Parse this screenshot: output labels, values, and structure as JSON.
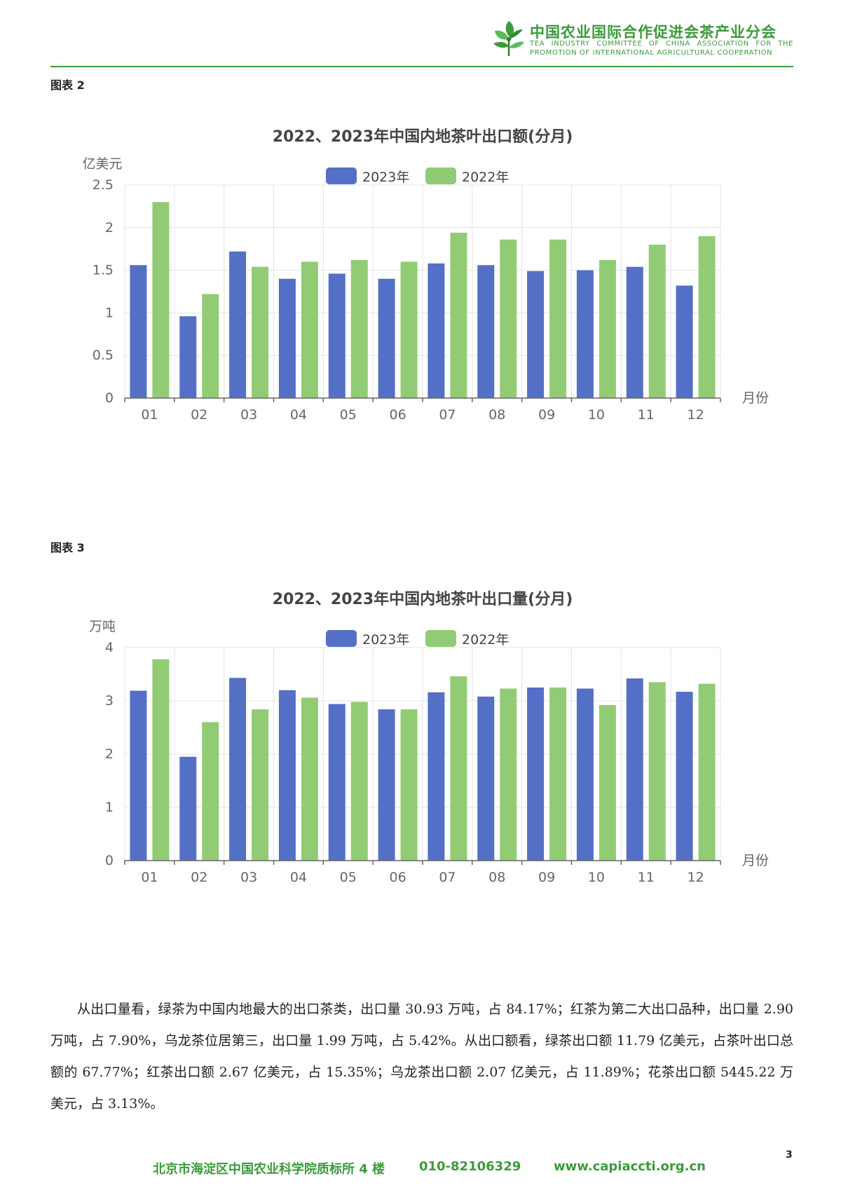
{
  "header": {
    "org_name_cn": "中国农业国际合作促进会茶产业分会",
    "org_name_en": "TEA INDUSTRY COMMITTEE OF CHINA ASSOCIATION FOR THE PROMOTION OF INTERNATIONAL AGRICULTURAL COOPERATION",
    "logo_icon": "tea-leaf-logo-icon",
    "accent_color": "#3a9b3a"
  },
  "figures": [
    {
      "label": "图表 2"
    },
    {
      "label": "图表 3"
    }
  ],
  "chart_data": [
    {
      "type": "bar",
      "title": "2022、2023年中国内地茶叶出口额(分月)",
      "ylabel": "亿美元",
      "xlabel": "月份",
      "categories": [
        "01",
        "02",
        "03",
        "04",
        "05",
        "06",
        "07",
        "08",
        "09",
        "10",
        "11",
        "12"
      ],
      "ylim": [
        0,
        2.5
      ],
      "yticks": [
        "0",
        "0.5",
        "1",
        "1.5",
        "2",
        "2.5"
      ],
      "ytick_values": [
        0,
        0.5,
        1,
        1.5,
        2,
        2.5
      ],
      "legend_position": "top-center",
      "grid": true,
      "series": [
        {
          "name": "2023年",
          "color": "#5470c6",
          "values": [
            1.56,
            0.96,
            1.72,
            1.4,
            1.46,
            1.4,
            1.58,
            1.56,
            1.49,
            1.5,
            1.54,
            1.32
          ]
        },
        {
          "name": "2022年",
          "color": "#91cc75",
          "values": [
            2.3,
            1.22,
            1.54,
            1.6,
            1.62,
            1.6,
            1.94,
            1.86,
            1.86,
            1.62,
            1.8,
            1.9
          ]
        }
      ]
    },
    {
      "type": "bar",
      "title": "2022、2023年中国内地茶叶出口量(分月)",
      "ylabel": "万吨",
      "xlabel": "月份",
      "categories": [
        "01",
        "02",
        "03",
        "04",
        "05",
        "06",
        "07",
        "08",
        "09",
        "10",
        "11",
        "12"
      ],
      "ylim": [
        0,
        4
      ],
      "yticks": [
        "0",
        "1",
        "2",
        "3",
        "4"
      ],
      "ytick_values": [
        0,
        1,
        2,
        3,
        4
      ],
      "legend_position": "top-center",
      "grid": true,
      "series": [
        {
          "name": "2023年",
          "color": "#5470c6",
          "values": [
            3.19,
            1.95,
            3.43,
            3.2,
            2.94,
            2.84,
            3.16,
            3.08,
            3.25,
            3.23,
            3.42,
            3.17
          ]
        },
        {
          "name": "2022年",
          "color": "#91cc75",
          "values": [
            3.78,
            2.6,
            2.84,
            3.06,
            2.98,
            2.84,
            3.46,
            3.23,
            3.25,
            2.92,
            3.35,
            3.32
          ]
        }
      ]
    }
  ],
  "body": {
    "paragraph": "从出口量看，绿茶为中国内地最大的出口茶类，出口量 30.93 万吨，占 84.17%；红茶为第二大出口品种，出口量 2.90 万吨，占 7.90%，乌龙茶位居第三，出口量 1.99 万吨，占 5.42%。从出口额看，绿茶出口额 11.79 亿美元，占茶叶出口总额的 67.77%；红茶出口额 2.67 亿美元，占 15.35%；乌龙茶出口额 2.07 亿美元，占 11.89%；花茶出口额 5445.22 万美元，占 3.13%。"
  },
  "page_number": "3",
  "footer": {
    "address": "北京市海淀区中国农业科学院质标所 4 楼",
    "phone": "010-82106329",
    "website": "www.capiaccti.org.cn"
  }
}
